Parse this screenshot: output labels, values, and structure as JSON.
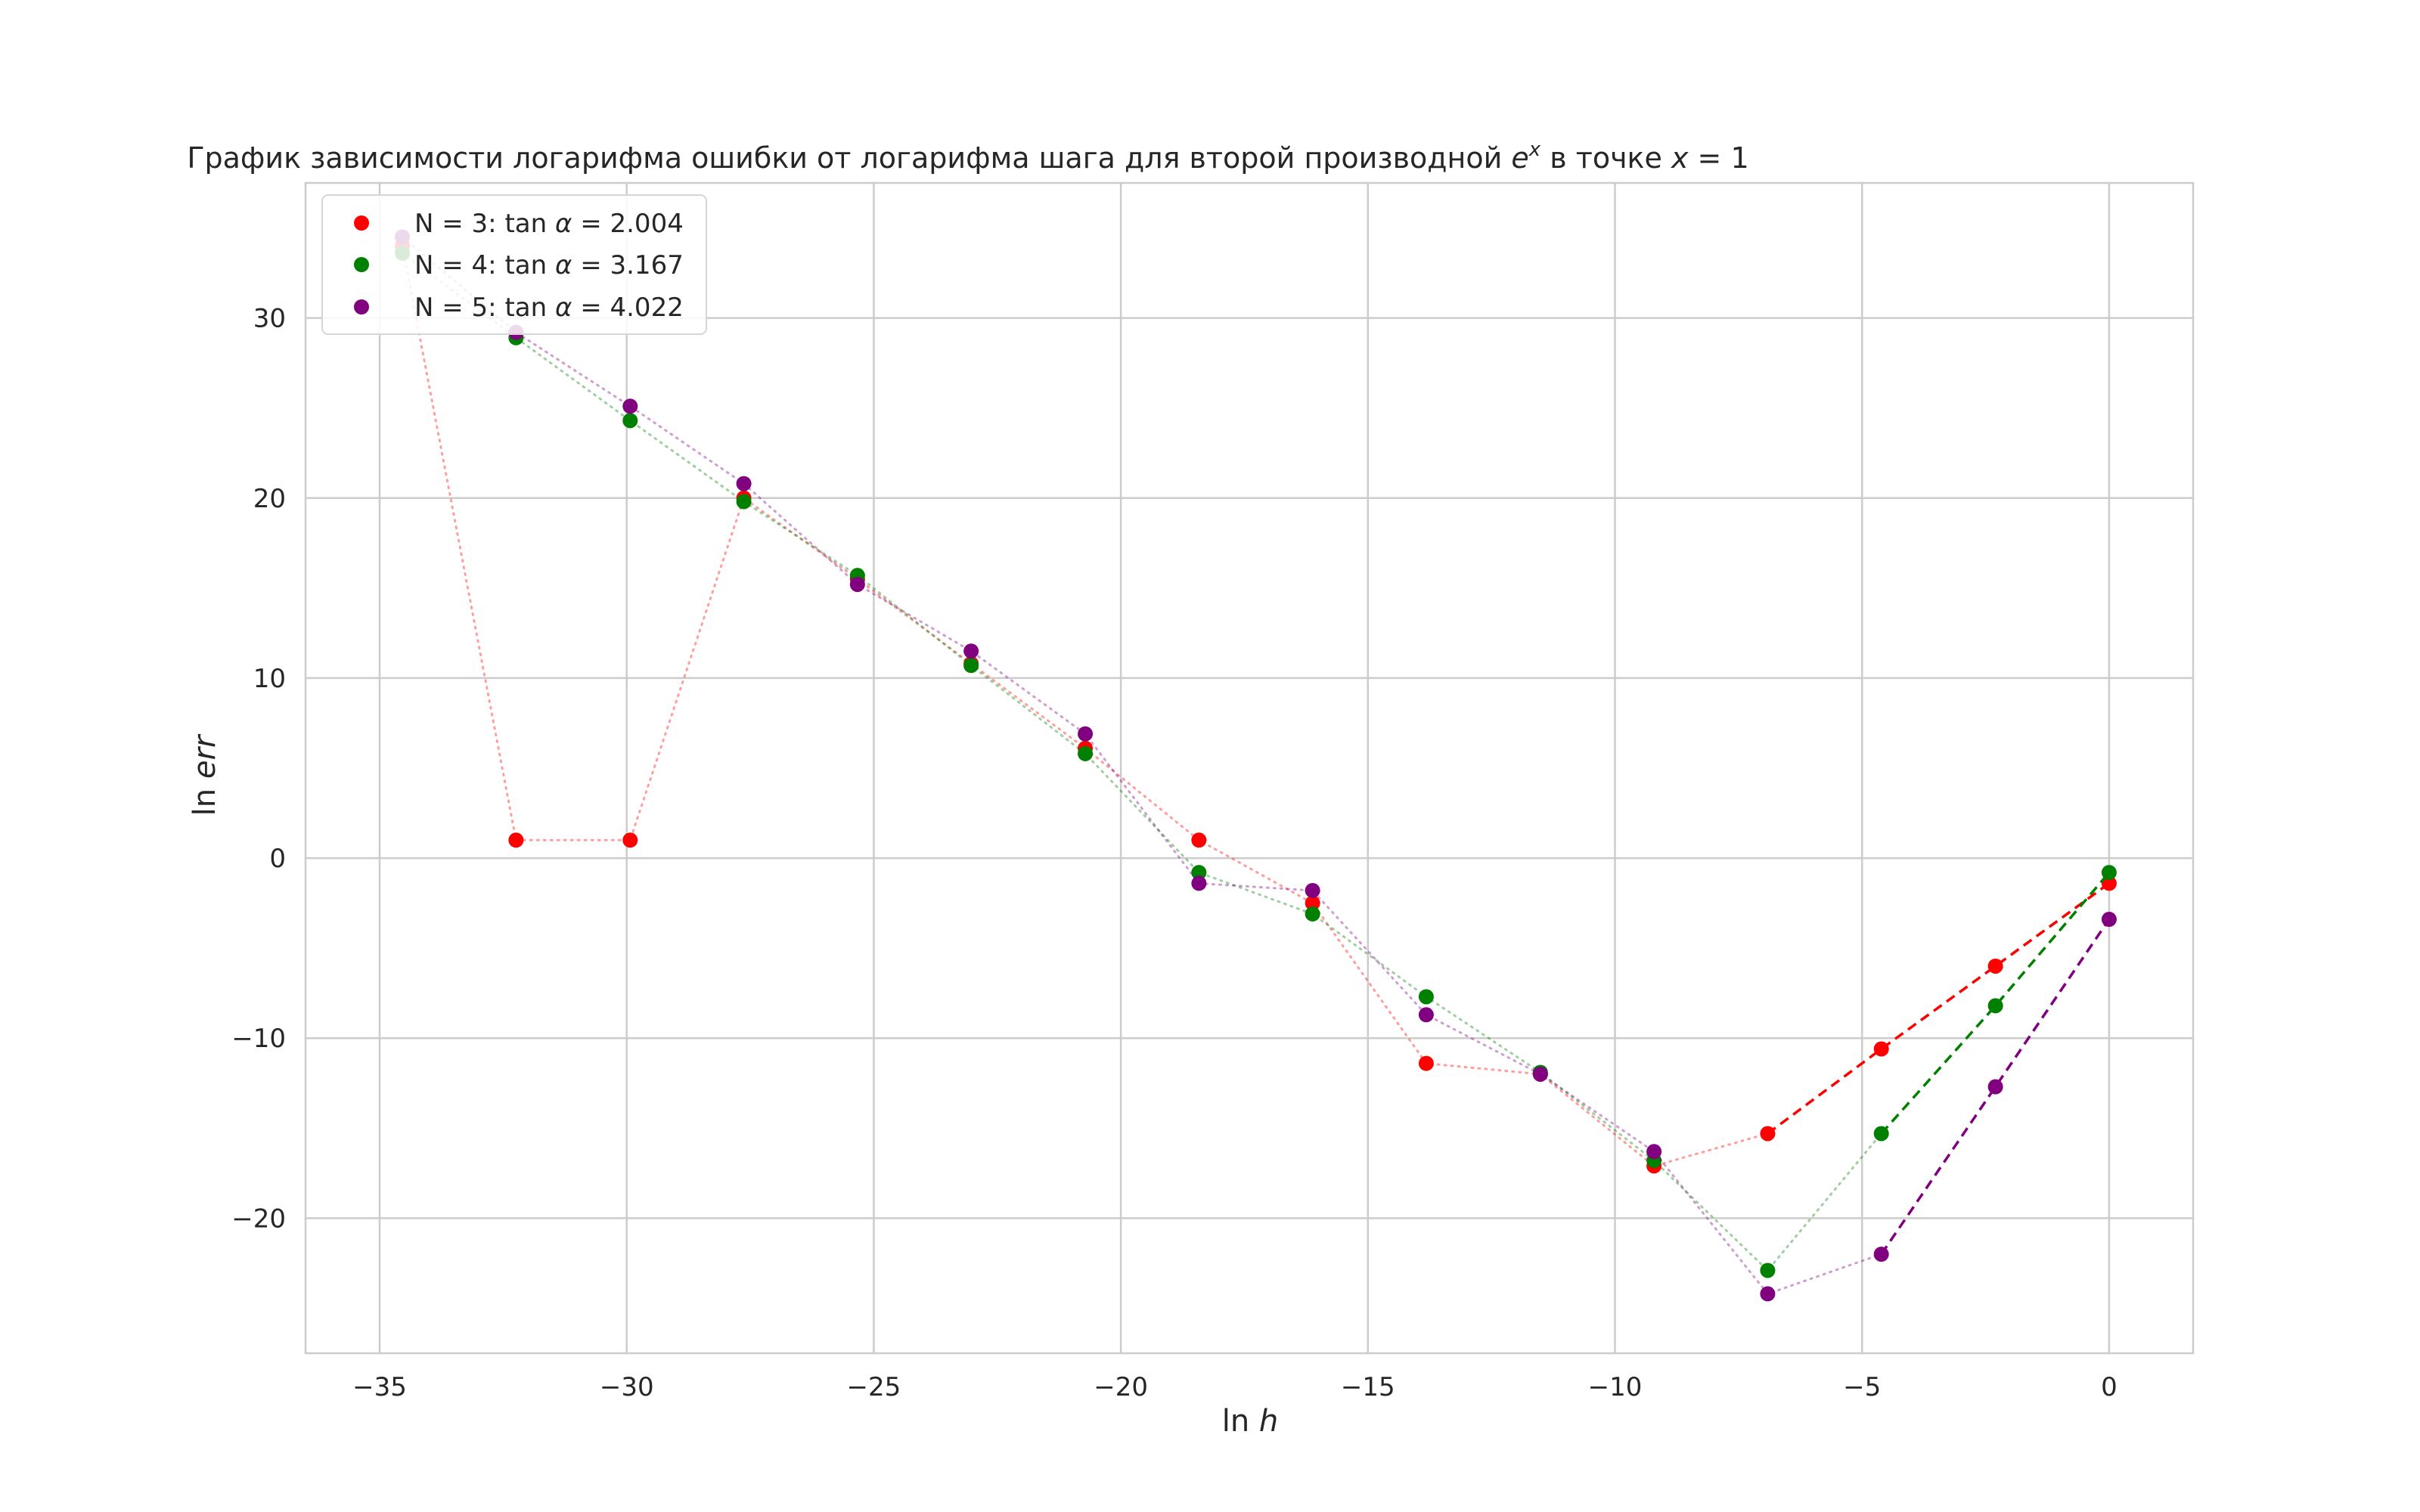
{
  "chart_data": {
    "type": "line",
    "title": "График зависимости логарифма ошибки от логарифма шага для второй производной e^x в точке x = 1",
    "title_parts": {
      "prefix": "График зависимости логарифма ошибки от логарифма шага для второй производной ",
      "base": "e",
      "exponent": "x",
      "middle": " в точке ",
      "var": "x",
      "suffix": " = 1"
    },
    "xlabel": "ln h",
    "xlabel_parts": {
      "fn": "ln",
      "var": "h"
    },
    "ylabel": "ln err",
    "ylabel_parts": {
      "fn": "ln",
      "var": "err"
    },
    "xlim": [
      -36.5,
      1.7
    ],
    "ylim": [
      -27.5,
      37.5
    ],
    "xticks": [
      -35,
      -30,
      -25,
      -20,
      -15,
      -10,
      -5,
      0
    ],
    "yticks": [
      -20,
      -10,
      0,
      10,
      20,
      30
    ],
    "xtick_labels": [
      "−35",
      "−30",
      "−25",
      "−20",
      "−15",
      "−10",
      "−5",
      "0"
    ],
    "ytick_labels": [
      "−20",
      "−10",
      "0",
      "10",
      "20",
      "30"
    ],
    "grid": true,
    "legend_position": "top-left",
    "series": [
      {
        "name": "N = 3: tan α = 2.004",
        "legend": {
          "prefix": "N = 3: ",
          "fn": "tan",
          "sym": "α",
          "value": " = 2.004"
        },
        "color": "#ff0000",
        "x": [
          -34.54,
          -32.24,
          -29.93,
          -27.63,
          -25.33,
          -23.03,
          -20.72,
          -18.42,
          -16.12,
          -13.82,
          -11.51,
          -9.21,
          -6.91,
          -4.61,
          -2.3,
          0.0
        ],
        "y": [
          34.0,
          1.0,
          1.0,
          20.0,
          15.5,
          10.8,
          6.1,
          1.0,
          -2.5,
          -11.4,
          -12.0,
          -17.1,
          -15.3,
          -10.6,
          -6.0,
          -1.4
        ],
        "fit_from_index": 12
      },
      {
        "name": "N = 4: tan α = 3.167",
        "legend": {
          "prefix": "N = 4: ",
          "fn": "tan",
          "sym": "α",
          "value": " = 3.167"
        },
        "color": "#008000",
        "x": [
          -34.54,
          -32.24,
          -29.93,
          -27.63,
          -25.33,
          -23.03,
          -20.72,
          -18.42,
          -16.12,
          -13.82,
          -11.51,
          -9.21,
          -6.91,
          -4.61,
          -2.3,
          0.0
        ],
        "y": [
          33.6,
          28.9,
          24.3,
          19.8,
          15.7,
          10.7,
          5.8,
          -0.8,
          -3.1,
          -7.7,
          -11.9,
          -16.8,
          -22.9,
          -15.3,
          -8.2,
          -0.8
        ],
        "fit_from_index": 13
      },
      {
        "name": "N = 5: tan α = 4.022",
        "legend": {
          "prefix": "N = 5: ",
          "fn": "tan",
          "sym": "α",
          "value": " = 4.022"
        },
        "color": "#800080",
        "x": [
          -34.54,
          -32.24,
          -29.93,
          -27.63,
          -25.33,
          -23.03,
          -20.72,
          -18.42,
          -16.12,
          -13.82,
          -11.51,
          -9.21,
          -6.91,
          -4.61,
          -2.3,
          0.0
        ],
        "y": [
          34.5,
          29.2,
          25.1,
          20.8,
          15.2,
          11.5,
          6.9,
          -1.4,
          -1.8,
          -8.7,
          -12.0,
          -16.3,
          -24.2,
          -22.0,
          -12.7,
          -3.4
        ],
        "fit_from_index": 13
      }
    ]
  }
}
